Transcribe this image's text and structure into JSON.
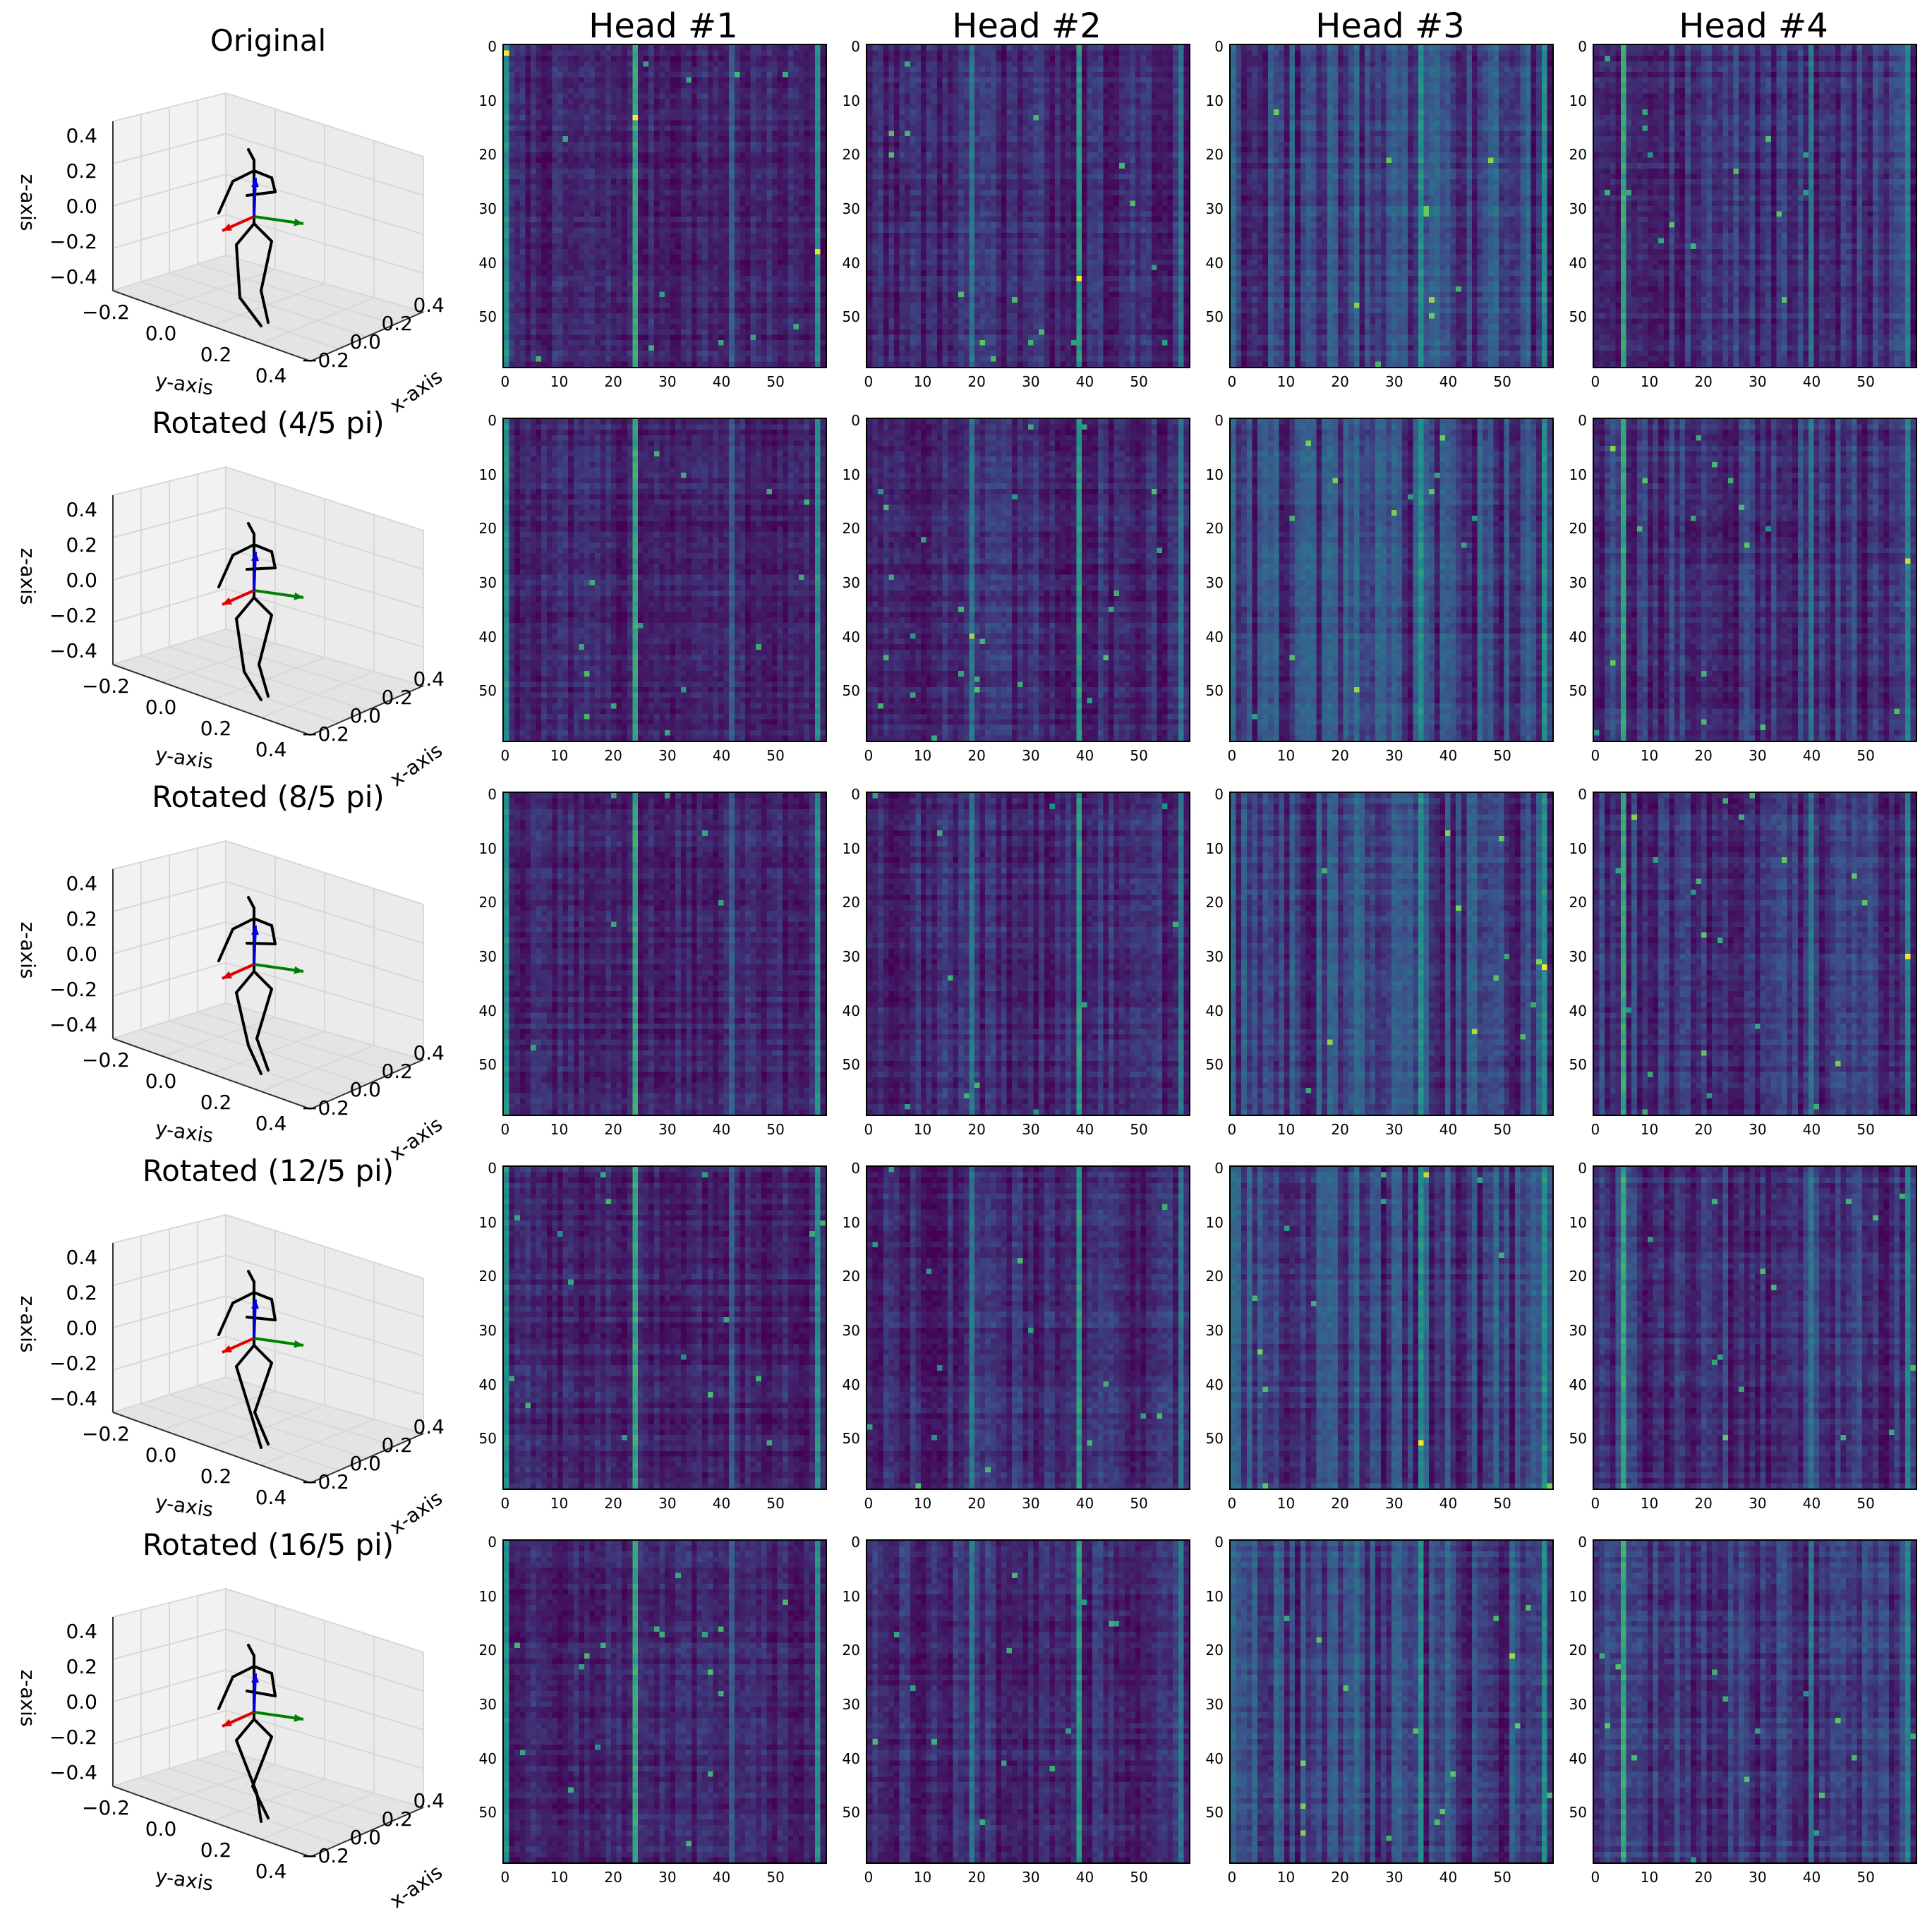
{
  "chart_data": {
    "type": "heatmap",
    "column_titles": [
      "Head #1",
      "Head #2",
      "Head #3",
      "Head #4"
    ],
    "row_titles": [
      "Original",
      "Rotated (4/5 pi)",
      "Rotated (8/5 pi)",
      "Rotated (12/5 pi)",
      "Rotated (16/5 pi)"
    ],
    "heatmap": {
      "size": 60,
      "colormap": "viridis",
      "x_ticks": [
        "0",
        "10",
        "20",
        "30",
        "40",
        "50"
      ],
      "y_ticks": [
        "0",
        "10",
        "20",
        "30",
        "40",
        "50"
      ],
      "dominant_columns": [
        [
          [
            0,
            0.45
          ],
          [
            24,
            0.55
          ],
          [
            58,
            0.45
          ],
          [
            42,
            0.25
          ]
        ],
        [
          [
            19,
            0.35
          ],
          [
            39,
            0.5
          ],
          [
            58,
            0.35
          ]
        ],
        [
          [
            0,
            0.3
          ],
          [
            23,
            0.3
          ],
          [
            35,
            0.45
          ],
          [
            58,
            0.45
          ]
        ],
        [
          [
            5,
            0.55
          ],
          [
            40,
            0.35
          ],
          [
            58,
            0.4
          ]
        ]
      ],
      "noise_levels": [
        0.12,
        0.16,
        0.3,
        0.22
      ]
    },
    "skeleton_plot": {
      "zlabel": "z-axis",
      "ylabel": "y-axis",
      "xlabel": "x-axis",
      "z_ticks": [
        "0.4",
        "0.2",
        "0.0",
        "−0.2",
        "−0.4"
      ],
      "y_ticks": [
        "−0.2",
        "0.0",
        "0.2",
        "0.4"
      ],
      "x_ticks": [
        "−0.2",
        "0.0",
        "0.2",
        "0.4"
      ],
      "arrow_colors": {
        "x": "#e00000",
        "y": "#008000",
        "z": "#0000e0"
      }
    }
  },
  "colors": {
    "viridis_low": "#440154",
    "viridis_mid": "#21908d",
    "viridis_high": "#fde725"
  }
}
